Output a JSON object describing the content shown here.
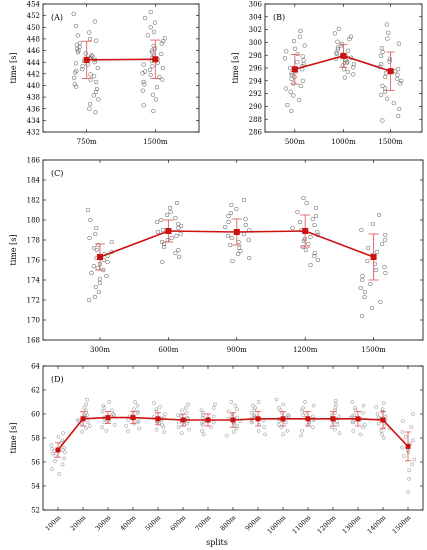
{
  "figure": {
    "x_caption": "splits"
  },
  "chart_data": [
    {
      "type": "scatter",
      "panel_label": "(A)",
      "ylabel": "time [s]",
      "categories": [
        "750m",
        "1500m"
      ],
      "ylim": [
        432,
        454
      ],
      "yticks": [
        432,
        434,
        436,
        438,
        440,
        442,
        444,
        446,
        448,
        450,
        452,
        454
      ],
      "mean": [
        444.4,
        444.5
      ],
      "sd": [
        3.2,
        3.3
      ],
      "points": [
        [
          452.3,
          451.0,
          450.2,
          449.1,
          448.6,
          448.0,
          447.7,
          447.3,
          447.0,
          446.6,
          446.3,
          446.0,
          445.7,
          445.5,
          445.2,
          445.0,
          444.8,
          444.6,
          444.4,
          444.2,
          444.0,
          443.8,
          443.6,
          443.3,
          443.0,
          442.8,
          442.5,
          442.2,
          441.9,
          441.6,
          441.3,
          441.0,
          440.6,
          440.2,
          439.8,
          439.4,
          438.9,
          438.3,
          437.6,
          436.8,
          436.0,
          435.4
        ],
        [
          452.6,
          451.6,
          450.8,
          450.0,
          449.2,
          448.6,
          448.1,
          447.6,
          447.2,
          446.8,
          446.4,
          446.0,
          445.7,
          445.4,
          445.1,
          444.8,
          444.5,
          444.2,
          443.9,
          443.6,
          443.3,
          443.0,
          442.7,
          442.4,
          442.1,
          441.8,
          441.4,
          441.0,
          440.6,
          440.2,
          439.7,
          439.1,
          438.4,
          437.6,
          436.6,
          435.6
        ]
      ]
    },
    {
      "type": "scatter",
      "panel_label": "(B)",
      "ylabel": "time [s]",
      "categories": [
        "500m",
        "1000m",
        "1500m"
      ],
      "ylim": [
        286,
        306
      ],
      "yticks": [
        286,
        288,
        290,
        292,
        294,
        296,
        298,
        300,
        302,
        304,
        306
      ],
      "mean": [
        295.8,
        297.9,
        295.5
      ],
      "sd": [
        2.3,
        1.8,
        3.0
      ],
      "points": [
        [
          301.8,
          300.9,
          300.2,
          299.5,
          299.0,
          298.6,
          298.2,
          297.8,
          297.5,
          297.2,
          296.9,
          296.6,
          296.3,
          296.0,
          295.8,
          295.5,
          295.2,
          294.9,
          294.6,
          294.3,
          294.0,
          293.6,
          293.2,
          292.8,
          292.3,
          291.7,
          291.0,
          290.2,
          289.3
        ],
        [
          302.1,
          301.4,
          300.9,
          300.5,
          300.1,
          299.8,
          299.5,
          299.2,
          298.9,
          298.7,
          298.4,
          298.2,
          298.0,
          297.8,
          297.6,
          297.4,
          297.2,
          297.0,
          296.8,
          296.6,
          296.4,
          296.1,
          295.8,
          295.4,
          295.0,
          294.5
        ],
        [
          302.8,
          301.5,
          300.6,
          299.8,
          299.1,
          298.5,
          297.9,
          297.4,
          297.0,
          296.6,
          296.2,
          295.8,
          295.5,
          295.2,
          294.9,
          294.6,
          294.3,
          294.0,
          293.6,
          293.2,
          292.8,
          292.3,
          291.8,
          291.2,
          290.5,
          289.6,
          288.5,
          287.8
        ]
      ]
    },
    {
      "type": "scatter",
      "panel_label": "(C)",
      "ylabel": "time [s]",
      "categories": [
        "300m",
        "600m",
        "900m",
        "1200m",
        "1500m"
      ],
      "ylim": [
        168,
        186
      ],
      "yticks": [
        168,
        170,
        172,
        174,
        176,
        178,
        180,
        182,
        184,
        186
      ],
      "mean": [
        176.3,
        178.9,
        178.8,
        178.9,
        176.3
      ],
      "sd": [
        1.3,
        1.1,
        1.3,
        1.6,
        2.3
      ],
      "points": [
        [
          181.0,
          180.0,
          179.2,
          178.6,
          178.2,
          177.8,
          177.5,
          177.2,
          177.0,
          176.8,
          176.6,
          176.4,
          176.2,
          176.0,
          175.8,
          175.6,
          175.4,
          175.2,
          175.0,
          174.7,
          174.4,
          174.1,
          173.7,
          173.3,
          172.8,
          172.3,
          172.0
        ],
        [
          181.7,
          181.2,
          180.8,
          180.5,
          180.2,
          180.0,
          179.8,
          179.6,
          179.4,
          179.2,
          179.0,
          178.8,
          178.6,
          178.4,
          178.2,
          178.0,
          177.8,
          177.6,
          177.3,
          177.0,
          176.7,
          176.3,
          175.8
        ],
        [
          182.0,
          181.5,
          181.1,
          180.7,
          180.4,
          180.1,
          179.8,
          179.5,
          179.3,
          179.0,
          178.8,
          178.6,
          178.4,
          178.2,
          178.0,
          177.8,
          177.5,
          177.2,
          176.9,
          176.6,
          176.2,
          175.9
        ],
        [
          182.2,
          181.7,
          181.2,
          180.8,
          180.4,
          180.1,
          179.8,
          179.5,
          179.2,
          179.0,
          178.8,
          178.5,
          178.3,
          178.1,
          177.9,
          177.6,
          177.3,
          177.0,
          176.7,
          176.4,
          176.0,
          175.5
        ],
        [
          180.5,
          179.6,
          179.0,
          178.5,
          178.0,
          177.6,
          177.2,
          176.8,
          176.5,
          176.2,
          175.9,
          175.6,
          175.3,
          175.0,
          174.7,
          174.4,
          174.0,
          173.6,
          173.2,
          172.8,
          172.3,
          171.8,
          171.2,
          170.4
        ]
      ]
    },
    {
      "type": "scatter",
      "panel_label": "(D)",
      "ylabel": "time [s]",
      "xlabel": "splits",
      "categories": [
        "100m",
        "200m",
        "300m",
        "400m",
        "500m",
        "600m",
        "700m",
        "800m",
        "900m",
        "1000m",
        "1100m",
        "1200m",
        "1300m",
        "1400m",
        "1500m"
      ],
      "ylim": [
        52,
        64
      ],
      "yticks": [
        52,
        54,
        56,
        58,
        60,
        62,
        64
      ],
      "mean": [
        57.0,
        59.6,
        59.7,
        59.7,
        59.6,
        59.5,
        59.5,
        59.5,
        59.6,
        59.6,
        59.6,
        59.6,
        59.6,
        59.5,
        57.3
      ],
      "sd": [
        0.6,
        0.6,
        0.5,
        0.5,
        0.5,
        0.5,
        0.5,
        0.6,
        0.6,
        0.6,
        0.6,
        0.6,
        0.6,
        0.7,
        1.2
      ],
      "points": [
        [
          58.4,
          58.1,
          57.8,
          57.6,
          57.4,
          57.2,
          57.1,
          57.0,
          56.9,
          56.8,
          56.7,
          56.5,
          56.3,
          56.1,
          55.8,
          55.4,
          55.0
        ],
        [
          61.2,
          60.8,
          60.5,
          60.3,
          60.1,
          59.9,
          59.8,
          59.7,
          59.6,
          59.5,
          59.4,
          59.3,
          59.2,
          59.0,
          58.8,
          58.5
        ],
        [
          61.0,
          60.7,
          60.5,
          60.3,
          60.2,
          60.0,
          59.9,
          59.8,
          59.7,
          59.6,
          59.5,
          59.4,
          59.3,
          59.1,
          58.9,
          58.6
        ],
        [
          61.0,
          60.7,
          60.4,
          60.2,
          60.1,
          59.9,
          59.8,
          59.7,
          59.6,
          59.5,
          59.4,
          59.3,
          59.2,
          59.0,
          58.8,
          58.6
        ],
        [
          60.9,
          60.6,
          60.4,
          60.2,
          60.0,
          59.8,
          59.7,
          59.6,
          59.5,
          59.4,
          59.3,
          59.2,
          59.1,
          58.9,
          58.7,
          58.5
        ],
        [
          60.8,
          60.5,
          60.3,
          60.1,
          59.9,
          59.8,
          59.7,
          59.6,
          59.5,
          59.4,
          59.3,
          59.2,
          59.1,
          58.9,
          58.7,
          58.4
        ],
        [
          60.8,
          60.5,
          60.3,
          60.1,
          59.9,
          59.8,
          59.7,
          59.6,
          59.5,
          59.4,
          59.3,
          59.2,
          59.1,
          58.9,
          58.6,
          58.3
        ],
        [
          61.0,
          60.7,
          60.4,
          60.2,
          60.0,
          59.8,
          59.7,
          59.6,
          59.5,
          59.4,
          59.3,
          59.2,
          59.0,
          58.8,
          58.5,
          58.2
        ],
        [
          61.0,
          60.7,
          60.5,
          60.3,
          60.1,
          59.9,
          59.8,
          59.7,
          59.6,
          59.5,
          59.4,
          59.3,
          59.1,
          58.9,
          58.6,
          58.3
        ],
        [
          61.2,
          60.8,
          60.5,
          60.3,
          60.1,
          59.9,
          59.8,
          59.7,
          59.6,
          59.5,
          59.4,
          59.3,
          59.1,
          58.9,
          58.6,
          58.3
        ],
        [
          61.0,
          60.7,
          60.5,
          60.3,
          60.1,
          59.9,
          59.8,
          59.7,
          59.6,
          59.5,
          59.4,
          59.3,
          59.1,
          58.9,
          58.6,
          58.2
        ],
        [
          61.1,
          60.8,
          60.5,
          60.3,
          60.1,
          59.9,
          59.8,
          59.7,
          59.6,
          59.5,
          59.4,
          59.3,
          59.1,
          58.9,
          58.7,
          58.4
        ],
        [
          61.0,
          60.7,
          60.5,
          60.3,
          60.1,
          59.9,
          59.8,
          59.7,
          59.6,
          59.5,
          59.4,
          59.3,
          59.1,
          58.9,
          58.6,
          58.3
        ],
        [
          60.9,
          60.6,
          60.4,
          60.2,
          60.0,
          59.8,
          59.7,
          59.6,
          59.5,
          59.4,
          59.2,
          59.0,
          58.8,
          58.6,
          58.3,
          58.0
        ],
        [
          60.0,
          59.4,
          58.9,
          58.5,
          58.1,
          57.8,
          57.5,
          57.2,
          57.0,
          56.8,
          56.5,
          56.2,
          55.8,
          55.3,
          54.6,
          53.5
        ]
      ]
    }
  ],
  "colors": {
    "accent": "#cc1111",
    "errorbar": "#e06060",
    "points": "#555555",
    "points_d": "#888888",
    "axis": "#000000"
  }
}
